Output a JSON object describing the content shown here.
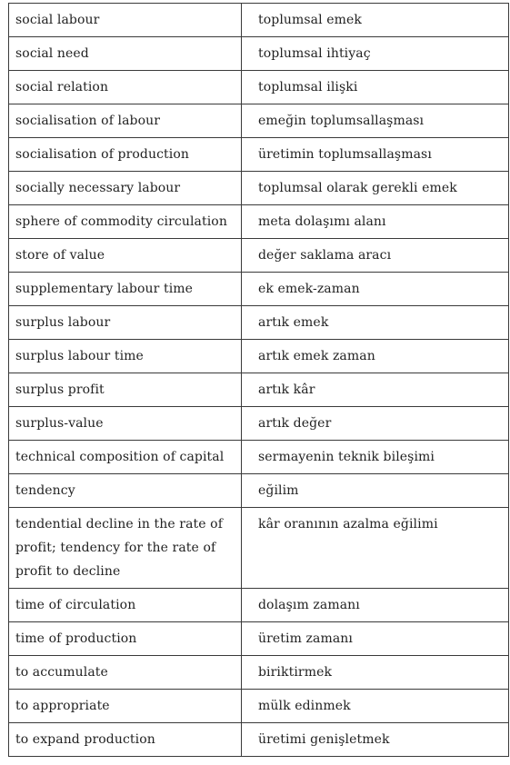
{
  "glossary": {
    "rows": [
      {
        "en": "social labour",
        "tr": "toplumsal emek"
      },
      {
        "en": "social need",
        "tr": "toplumsal ihtiyaç"
      },
      {
        "en": "social relation",
        "tr": "toplumsal ilişki"
      },
      {
        "en": "socialisation of labour",
        "tr": "emeğin toplumsallaşması"
      },
      {
        "en": "socialisation of production",
        "tr": "üretimin toplumsallaşması"
      },
      {
        "en": "socially necessary labour",
        "tr": "toplumsal olarak gerekli emek"
      },
      {
        "en": "sphere of commodity circulation",
        "tr": "meta dolaşımı alanı"
      },
      {
        "en": "store of value",
        "tr": "değer saklama aracı"
      },
      {
        "en": "supplementary labour time",
        "tr": "ek emek-zaman"
      },
      {
        "en": "surplus labour",
        "tr": "artık emek"
      },
      {
        "en": "surplus labour time",
        "tr": "artık emek zaman"
      },
      {
        "en": "surplus profit",
        "tr": "artık kâr"
      },
      {
        "en": "surplus-value",
        "tr": "artık değer"
      },
      {
        "en": "technical composition of capital",
        "tr": "sermayenin teknik bileşimi"
      },
      {
        "en": "tendency",
        "tr": "eğilim"
      },
      {
        "en": "tendential decline in the rate of profit; tendency for the rate of profit to decline",
        "tr": "kâr oranının azalma eğilimi"
      },
      {
        "en": "time of circulation",
        "tr": "dolaşım zamanı"
      },
      {
        "en": "time of production",
        "tr": "üretim zamanı"
      },
      {
        "en": "to accumulate",
        "tr": "biriktirmek"
      },
      {
        "en": "to appropriate",
        "tr": "mülk edinmek"
      },
      {
        "en": "to expand production",
        "tr": "üretimi genişletmek"
      }
    ]
  }
}
